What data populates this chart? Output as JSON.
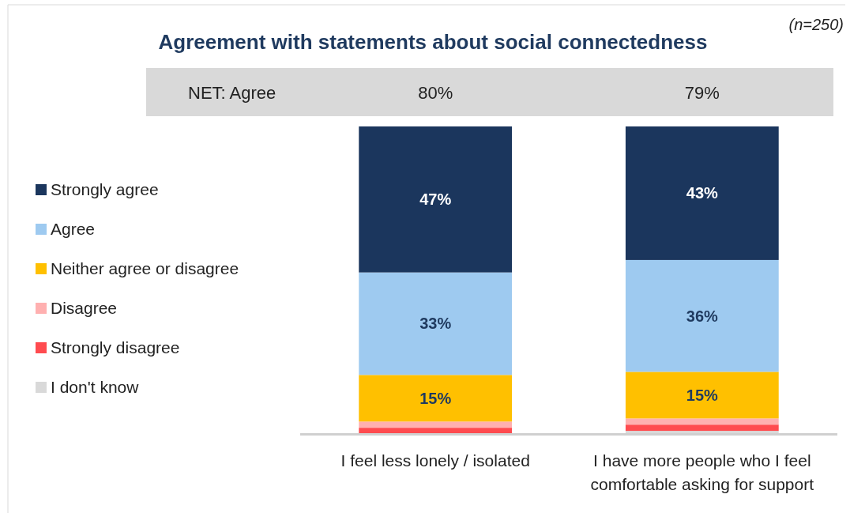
{
  "chart_data": {
    "type": "bar",
    "title": "Agreement with statements about social connectedness",
    "categories": [
      "I feel less lonely / isolated",
      "I have more people who I feel comfortable asking for support"
    ],
    "stacked": true,
    "legend": "left",
    "series": [
      {
        "name": "I don't know",
        "color": "#d9d9d9",
        "values": [
          0,
          1
        ],
        "value_labels": [
          null,
          null
        ]
      },
      {
        "name": "Strongly disagree",
        "color": "#ff4b4f",
        "values": [
          2,
          2
        ],
        "value_labels": [
          null,
          null
        ]
      },
      {
        "name": "Disagree",
        "color": "#ffb0b0",
        "values": [
          2,
          2
        ],
        "value_labels": [
          null,
          null
        ]
      },
      {
        "name": "Neither agree or disagree",
        "color": "#ffc000",
        "values": [
          15,
          15
        ],
        "value_labels": [
          "15%",
          "15%"
        ]
      },
      {
        "name": "Agree",
        "color": "#9ecaf0",
        "values": [
          33,
          36
        ],
        "value_labels": [
          "33%",
          "36%"
        ]
      },
      {
        "name": "Strongly agree",
        "color": "#1b365d",
        "values": [
          47,
          43
        ],
        "value_labels": [
          "47%",
          "43%"
        ]
      }
    ],
    "annotations": [
      "(n=250)",
      "NET: Agree",
      "80%",
      "79%"
    ]
  }
}
